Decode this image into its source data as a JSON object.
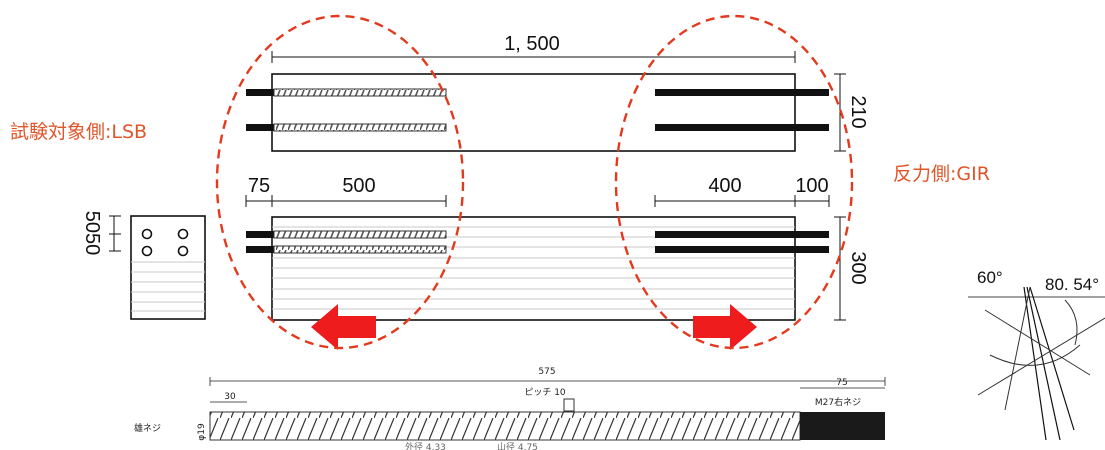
{
  "labels": {
    "test_side": "試験対象側:LSB",
    "reaction_side": "反力側:GIR"
  },
  "dimensions": {
    "overall_length": "1, 500",
    "depth_210": "210",
    "left_75": "75",
    "left_500": "500",
    "right_400": "400",
    "right_100": "100",
    "height_300": "300",
    "section_spacing": "5050"
  },
  "screw_drawing": {
    "total_length": "575",
    "pitch": "ピッチ 10",
    "lead": "30",
    "end_length": "75",
    "end_thread": "M27右ネジ",
    "name": "雄ネジ",
    "dia": "φ19",
    "foot1": "外径 4.33",
    "foot2": "山径 4.75"
  },
  "angles": {
    "a1": "60°",
    "a2": "80. 54°"
  },
  "colors": {
    "dashed": "#e23a1e",
    "arrow": "#ee1c1c",
    "label": "#e0552a",
    "line": "#111111"
  }
}
